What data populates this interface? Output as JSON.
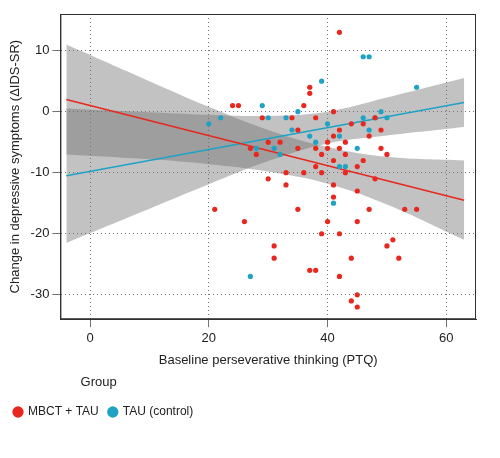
{
  "chart_data": {
    "type": "scatter",
    "x_label": "Baseline perseverative thinking (PTQ)",
    "y_label": "Change in depressive symptoms (ΔIDS-SR)",
    "xlim": [
      -5,
      65
    ],
    "ylim": [
      -34,
      16
    ],
    "xticks": [
      0,
      20,
      40,
      60
    ],
    "yticks": [
      -30,
      -20,
      -10,
      0,
      10
    ],
    "grid": true,
    "legend": "bottom",
    "legend_title": "Group",
    "series": [
      {
        "name": "MBCT + TAU",
        "color": "#e8281e",
        "marker": "circle",
        "line_style": "solid",
        "x": [
          21,
          24,
          25,
          26,
          27,
          28,
          29,
          30,
          30,
          31,
          31,
          32,
          33,
          33,
          34,
          35,
          35,
          35,
          36,
          36,
          37,
          37,
          37,
          38,
          38,
          38,
          38,
          39,
          39,
          39,
          40,
          40,
          40,
          41,
          41,
          41,
          41,
          41,
          42,
          42,
          42,
          42,
          42,
          43,
          43,
          43,
          44,
          44,
          44,
          45,
          45,
          45,
          45,
          45,
          46,
          46,
          47,
          47,
          48,
          48,
          49,
          49,
          50,
          50,
          51,
          52,
          53,
          55
        ],
        "values": [
          -16,
          1,
          1,
          -18,
          -6,
          -7,
          -1,
          -5,
          -11,
          -22,
          -24,
          -5,
          -10,
          -12,
          -1,
          -6,
          -3,
          -16,
          1,
          -10,
          4,
          3,
          -26,
          -26,
          -1,
          -6,
          -9,
          -20,
          -7,
          -10,
          -5,
          -6,
          -18,
          0,
          -4,
          -8,
          -12,
          -14,
          13,
          -3,
          -6,
          -20,
          -27,
          -5,
          -7,
          -10,
          -24,
          -31,
          -2,
          -32,
          -30,
          -18,
          -13,
          -9,
          -8,
          -2,
          -4,
          -16,
          -1,
          -11,
          -3,
          -6,
          -22,
          -7,
          -21,
          -24,
          -16,
          -16
        ],
        "fit": {
          "x": [
            -4,
            63
          ],
          "values": [
            2,
            -14.5
          ]
        },
        "band": {
          "x": [
            -4,
            10,
            20,
            30,
            40,
            50,
            63
          ],
          "lower": [
            -7,
            -7.8,
            -8.6,
            -9.8,
            -11.8,
            -15.2,
            -21
          ],
          "upper": [
            11,
            5,
            0.8,
            -3,
            -5.8,
            -7.4,
            -8
          ]
        }
      },
      {
        "name": "TAU (control)",
        "color": "#1fa3c4",
        "marker": "circle",
        "line_style": "solid",
        "x": [
          20,
          22,
          27,
          28,
          29,
          30,
          31,
          32,
          33,
          34,
          35,
          37,
          38,
          39,
          40,
          41,
          42,
          42,
          43,
          45,
          46,
          46,
          47,
          47,
          48,
          49,
          50,
          55
        ],
        "values": [
          -2,
          -1,
          -27,
          -6,
          1,
          -1,
          -6,
          -7,
          -1,
          -3,
          0,
          -4,
          -5,
          5,
          -2,
          -15,
          -4,
          -9,
          -9,
          -6,
          9,
          -1,
          9,
          -3,
          -1,
          0,
          -1,
          4
        ],
        "fit": {
          "x": [
            -4,
            63
          ],
          "values": [
            -10.5,
            1.5
          ]
        },
        "band": {
          "x": [
            -4,
            10,
            20,
            30,
            40,
            50,
            63
          ],
          "lower": [
            -21.5,
            -15.9,
            -11.9,
            -8.1,
            -5.2,
            -3.9,
            -2.5
          ],
          "upper": [
            0.5,
            -0.1,
            -0.5,
            -0.7,
            0,
            2.3,
            5.5
          ]
        }
      }
    ]
  }
}
